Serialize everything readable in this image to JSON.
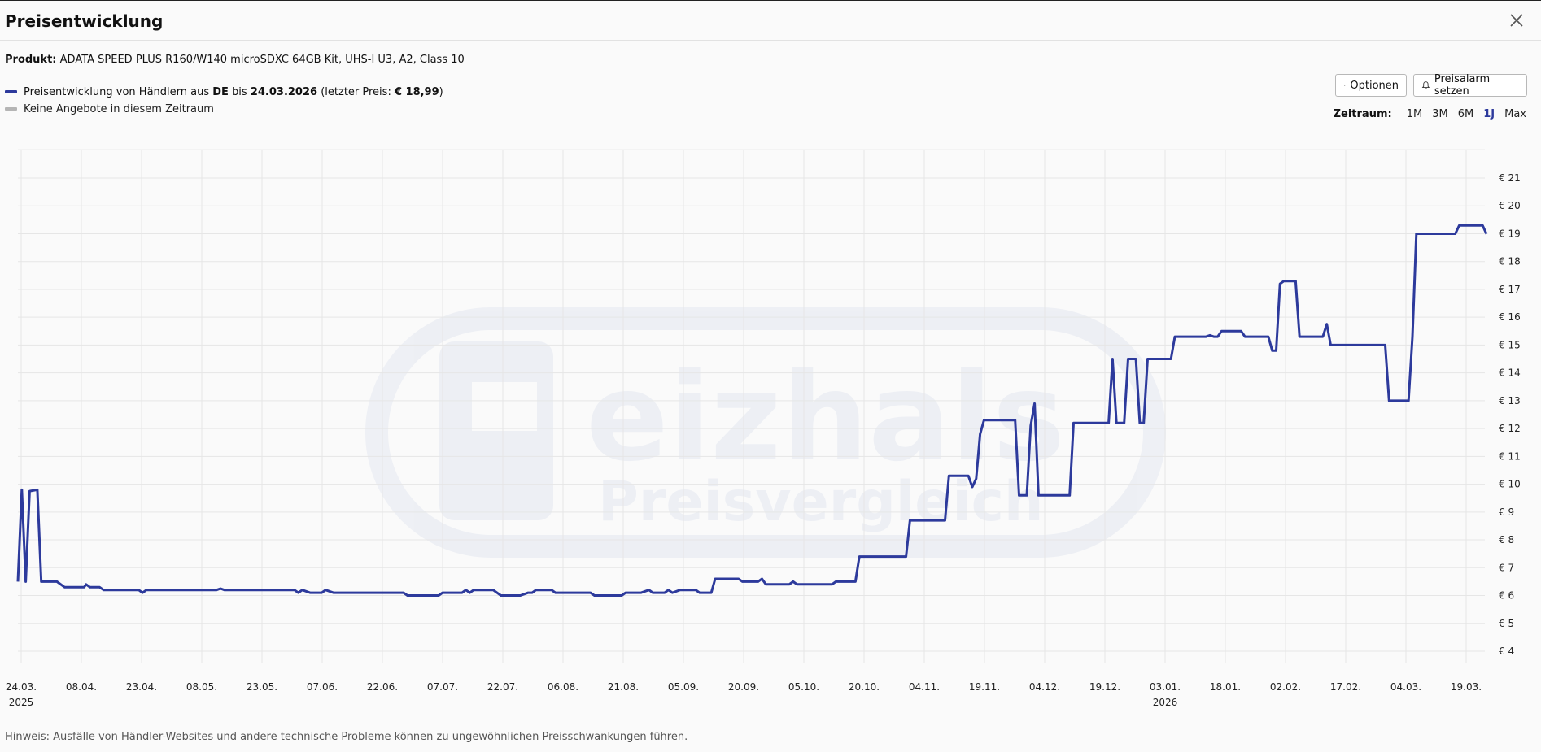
{
  "header": {
    "title": "Preisentwicklung"
  },
  "product": {
    "label": "Produkt:",
    "name": "ADATA SPEED PLUS R160/W140 microSDXC 64GB Kit, UHS-I U3, A2, Class 10"
  },
  "legend": {
    "line1_prefix": "Preisentwicklung von Händlern aus ",
    "line1_country": "DE",
    "line1_mid": " bis ",
    "line1_date": "24.03.2026",
    "line1_open": " (letzter Preis: ",
    "line1_price": "€ 18,99",
    "line1_close": ")",
    "line2": "Keine Angebote in diesem Zeitraum",
    "colors": {
      "price_line": "#2d3a9c",
      "no_offers": "#b5b5b5"
    }
  },
  "toolbar": {
    "options_label": "Optionen",
    "alarm_label": "Preisalarm setzen",
    "range_label": "Zeitraum:",
    "ranges": [
      "1M",
      "3M",
      "6M",
      "1J",
      "Max"
    ],
    "active_range": "1J"
  },
  "chart_data": {
    "type": "line",
    "ylim": [
      4,
      21
    ],
    "y_ticks": [
      "€ 4",
      "€ 5",
      "€ 6",
      "€ 7",
      "€ 8",
      "€ 9",
      "€ 10",
      "€ 11",
      "€ 12",
      "€ 13",
      "€ 14",
      "€ 15",
      "€ 16",
      "€ 17",
      "€ 18",
      "€ 19",
      "€ 20",
      "€ 21"
    ],
    "x_ticks": [
      {
        "label": "24.03.",
        "sub": "2025"
      },
      {
        "label": "08.04."
      },
      {
        "label": "23.04."
      },
      {
        "label": "08.05."
      },
      {
        "label": "23.05."
      },
      {
        "label": "07.06."
      },
      {
        "label": "22.06."
      },
      {
        "label": "07.07."
      },
      {
        "label": "22.07."
      },
      {
        "label": "06.08."
      },
      {
        "label": "21.08."
      },
      {
        "label": "05.09."
      },
      {
        "label": "20.09."
      },
      {
        "label": "05.10."
      },
      {
        "label": "20.10."
      },
      {
        "label": "04.11."
      },
      {
        "label": "19.11."
      },
      {
        "label": "04.12."
      },
      {
        "label": "19.12."
      },
      {
        "label": "03.01.",
        "sub": "2026"
      },
      {
        "label": "18.01."
      },
      {
        "label": "02.02."
      },
      {
        "label": "17.02."
      },
      {
        "label": "04.03."
      },
      {
        "label": "19.03."
      }
    ],
    "series": [
      {
        "points": [
          [
            0,
            6.5
          ],
          [
            1,
            9.8
          ],
          [
            2,
            6.5
          ],
          [
            3,
            9.75
          ],
          [
            5,
            9.8
          ],
          [
            6,
            6.5
          ],
          [
            10,
            6.5
          ],
          [
            12,
            6.3
          ],
          [
            17,
            6.3
          ],
          [
            17.5,
            6.4
          ],
          [
            18.5,
            6.3
          ],
          [
            21,
            6.3
          ],
          [
            22,
            6.2
          ],
          [
            31,
            6.2
          ],
          [
            32,
            6.1
          ],
          [
            33,
            6.2
          ],
          [
            51,
            6.2
          ],
          [
            52,
            6.25
          ],
          [
            53,
            6.2
          ],
          [
            71,
            6.2
          ],
          [
            72,
            6.1
          ],
          [
            73,
            6.2
          ],
          [
            75,
            6.1
          ],
          [
            78,
            6.1
          ],
          [
            79,
            6.2
          ],
          [
            81,
            6.1
          ],
          [
            99,
            6.1
          ],
          [
            100,
            6.0
          ],
          [
            108,
            6.0
          ],
          [
            109,
            6.1
          ],
          [
            114,
            6.1
          ],
          [
            115,
            6.2
          ],
          [
            116,
            6.1
          ],
          [
            117,
            6.2
          ],
          [
            122,
            6.2
          ],
          [
            124,
            6.0
          ],
          [
            129,
            6.0
          ],
          [
            131,
            6.1
          ],
          [
            132,
            6.1
          ],
          [
            133,
            6.2
          ],
          [
            137,
            6.2
          ],
          [
            138,
            6.1
          ],
          [
            147,
            6.1
          ],
          [
            148,
            6.0
          ],
          [
            155,
            6.0
          ],
          [
            156,
            6.1
          ],
          [
            160,
            6.1
          ],
          [
            162,
            6.2
          ],
          [
            163,
            6.1
          ],
          [
            166,
            6.1
          ],
          [
            167,
            6.2
          ],
          [
            168,
            6.1
          ],
          [
            170,
            6.2
          ],
          [
            174,
            6.2
          ],
          [
            175,
            6.1
          ],
          [
            178,
            6.1
          ],
          [
            179,
            6.6
          ],
          [
            185,
            6.6
          ],
          [
            186,
            6.5
          ],
          [
            190,
            6.5
          ],
          [
            191,
            6.6
          ],
          [
            192,
            6.4
          ],
          [
            198,
            6.4
          ],
          [
            199,
            6.5
          ],
          [
            200,
            6.4
          ],
          [
            209,
            6.4
          ],
          [
            210,
            6.5
          ],
          [
            215,
            6.5
          ],
          [
            216,
            7.4
          ],
          [
            228,
            7.4
          ],
          [
            229,
            8.7
          ],
          [
            238,
            8.7
          ],
          [
            239,
            10.3
          ],
          [
            244,
            10.3
          ],
          [
            245,
            9.9
          ],
          [
            246,
            10.2
          ],
          [
            247,
            11.8
          ],
          [
            248,
            12.3
          ],
          [
            256,
            12.3
          ],
          [
            257,
            9.6
          ],
          [
            259,
            9.6
          ],
          [
            260,
            12.1
          ],
          [
            261,
            12.9
          ],
          [
            262,
            9.6
          ],
          [
            270,
            9.6
          ],
          [
            271,
            12.2
          ],
          [
            280,
            12.2
          ],
          [
            281,
            14.5
          ],
          [
            282,
            12.2
          ],
          [
            284,
            12.2
          ],
          [
            285,
            14.5
          ],
          [
            287,
            14.5
          ],
          [
            288,
            12.2
          ],
          [
            289,
            12.2
          ],
          [
            290,
            14.5
          ],
          [
            296,
            14.5
          ],
          [
            297,
            15.3
          ],
          [
            305,
            15.3
          ],
          [
            306,
            15.35
          ],
          [
            307,
            15.3
          ],
          [
            308,
            15.3
          ],
          [
            309,
            15.5
          ],
          [
            314,
            15.5
          ],
          [
            315,
            15.3
          ],
          [
            321,
            15.3
          ],
          [
            322,
            14.8
          ],
          [
            323,
            14.8
          ],
          [
            324,
            17.2
          ],
          [
            325,
            17.3
          ],
          [
            328,
            17.3
          ],
          [
            329,
            15.3
          ],
          [
            335,
            15.3
          ],
          [
            336,
            15.75
          ],
          [
            337,
            15.0
          ],
          [
            351,
            15.0
          ],
          [
            352,
            13.0
          ],
          [
            357,
            13.0
          ],
          [
            358,
            15.3
          ],
          [
            359,
            19.0
          ],
          [
            369,
            19.0
          ],
          [
            370,
            19.3
          ],
          [
            376,
            19.3
          ],
          [
            377,
            18.99
          ]
        ]
      }
    ]
  },
  "hint": "Hinweis: Ausfälle von Händler-Websites und andere technische Probleme können zu ungewöhnlichen Preisschwankungen führen."
}
